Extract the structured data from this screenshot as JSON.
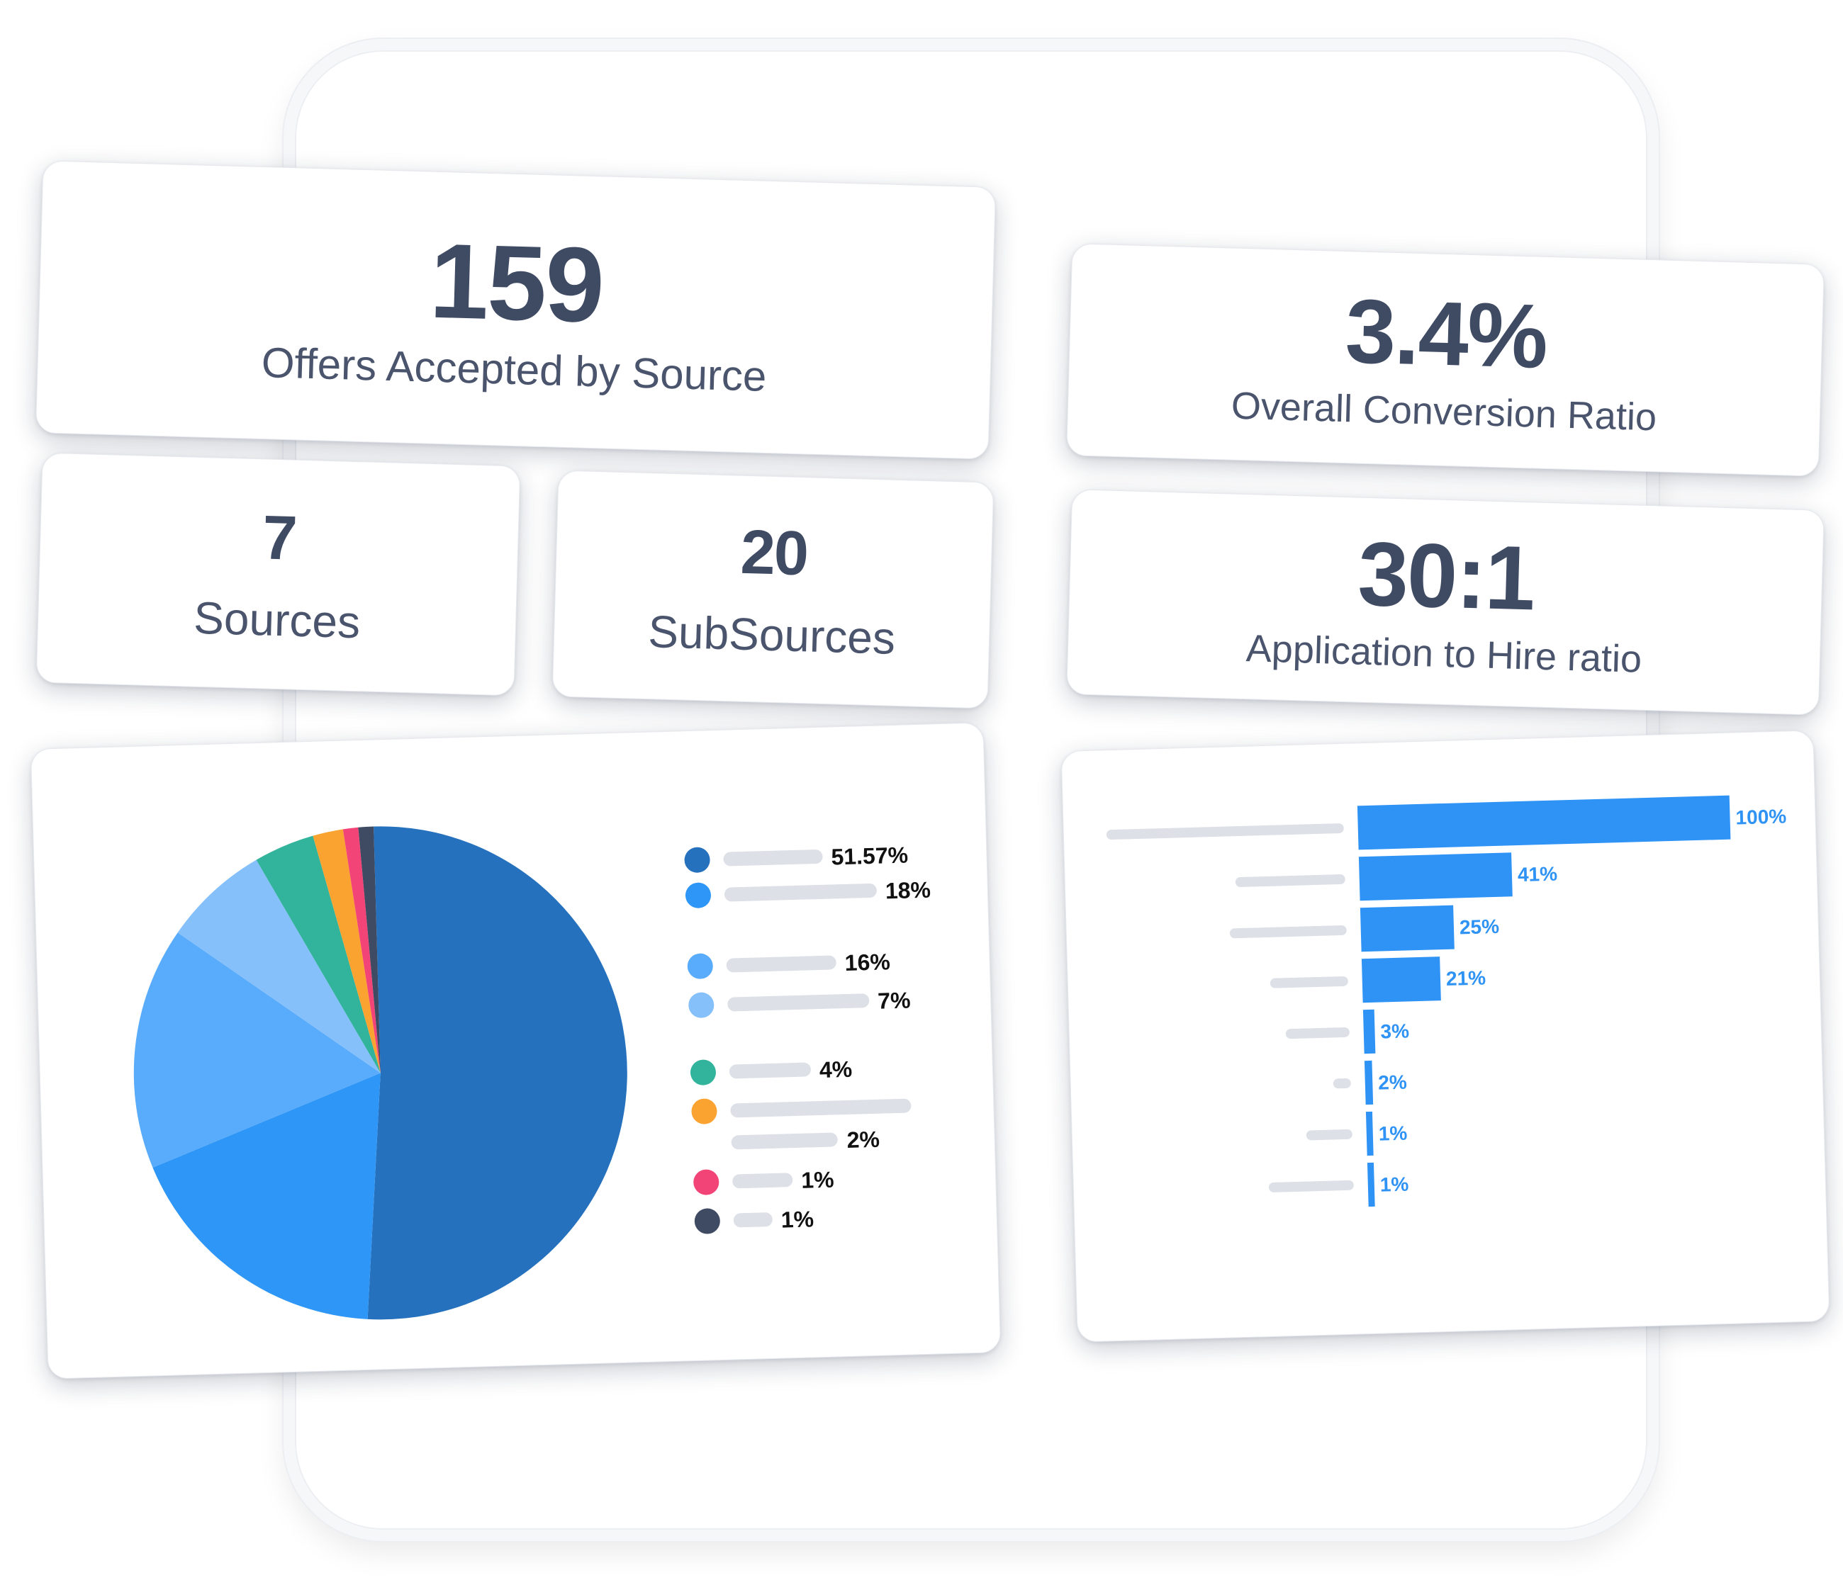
{
  "stats": {
    "offers": {
      "value": "159",
      "label": "Offers Accepted by Source"
    },
    "sources": {
      "value": "7",
      "label": "Sources"
    },
    "subsources": {
      "value": "20",
      "label": "SubSources"
    },
    "conversion": {
      "value": "3.4%",
      "label": "Overall Conversion Ratio"
    },
    "hire_ratio": {
      "value": "30:1",
      "label": "Application to Hire ratio"
    }
  },
  "chart_data": [
    {
      "type": "pie",
      "title": "",
      "labels": [
        "51.57%",
        "18%",
        "16%",
        "7%",
        "4%",
        "2%",
        "1%",
        "1%"
      ],
      "values": [
        51.57,
        18,
        16,
        7,
        4,
        2,
        1,
        1
      ],
      "colors": [
        "#2571bd",
        "#2e96f6",
        "#59abfb",
        "#85c0fb",
        "#32b39b",
        "#fba331",
        "#f34477",
        "#3f4a63"
      ],
      "legend": "right"
    },
    {
      "type": "bar",
      "orientation": "horizontal",
      "title": "",
      "labels": [
        "100%",
        "41%",
        "25%",
        "21%",
        "3%",
        "2%",
        "1%",
        "1%"
      ],
      "values": [
        100,
        41,
        25,
        21,
        3,
        2,
        1,
        1
      ],
      "color": "#2e93f5",
      "xlim": [
        0,
        100
      ]
    }
  ]
}
